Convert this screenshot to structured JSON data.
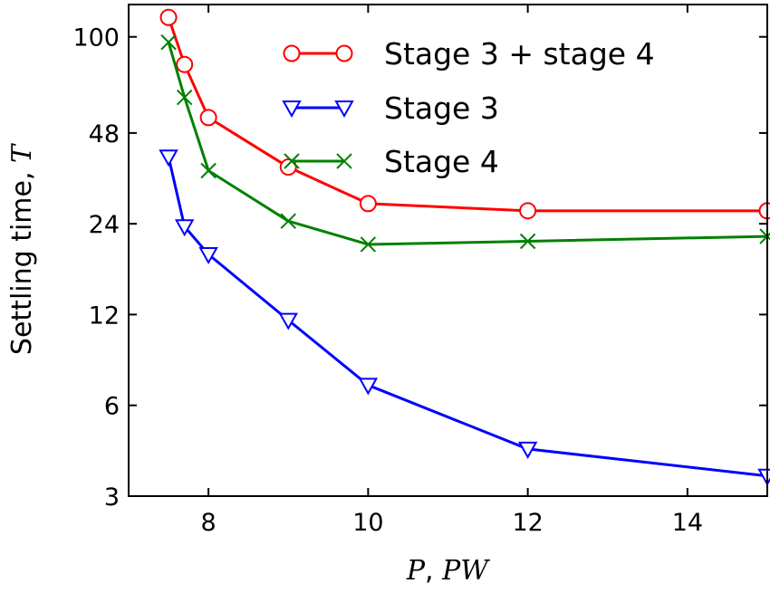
{
  "chart_data": {
    "type": "line",
    "xlabel": {
      "prefix": "P",
      "sep": ", ",
      "suffix": "PW"
    },
    "ylabel": {
      "prefix": "Settling time, ",
      "suffix": "T"
    },
    "xlim": [
      7,
      15
    ],
    "ylim": [
      3,
      128
    ],
    "y_scale": "log2",
    "x_ticks": [
      8,
      10,
      12,
      14
    ],
    "x_tick_labels": [
      "8",
      "10",
      "12",
      "14"
    ],
    "y_ticks": [
      3,
      6,
      12,
      24,
      48,
      100
    ],
    "y_tick_labels": [
      "3",
      "6",
      "12",
      "24",
      "48",
      "100"
    ],
    "grid": false,
    "legend_position": "top-right",
    "series": [
      {
        "name": "Stage 3 + stage 4",
        "color": "#ff0000",
        "marker": "circle",
        "x": [
          7.5,
          7.7,
          8,
          9,
          10,
          12,
          15
        ],
        "y": [
          116,
          81,
          54,
          37,
          28,
          26.5,
          26.5
        ]
      },
      {
        "name": "Stage 3",
        "color": "#0000ff",
        "marker": "triangle-down",
        "x": [
          7.5,
          7.7,
          8,
          9,
          10,
          12,
          15
        ],
        "y": [
          40,
          23.5,
          19,
          11.5,
          7,
          4.3,
          3.5
        ]
      },
      {
        "name": "Stage 4",
        "color": "#008000",
        "marker": "x",
        "x": [
          7.5,
          7.7,
          8,
          9,
          10,
          12,
          15
        ],
        "y": [
          96,
          63,
          36,
          24.5,
          20.5,
          21,
          21.8
        ]
      }
    ]
  }
}
